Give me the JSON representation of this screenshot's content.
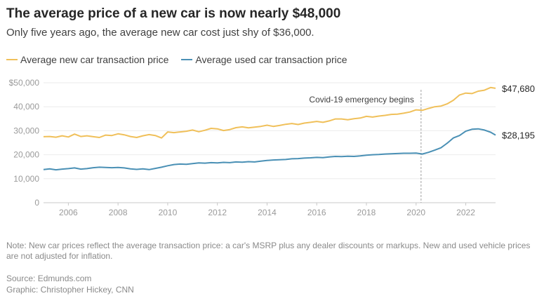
{
  "header": {
    "title": "The average price of a new car is now nearly $48,000",
    "subtitle": "Only five years ago, the average new car cost just shy of $36,000."
  },
  "footer": {
    "note": "Note: New car prices reflect the average transaction price: a car's MSRP plus any dealer discounts or markups. New and used vehicle prices are not adjusted for inflation.",
    "source": "Source: Edmunds.com",
    "credit": "Graphic: Christopher Hickey, CNN"
  },
  "chart_data": {
    "type": "line",
    "title": "The average price of a new car is now nearly $48,000",
    "subtitle": "Only five years ago, the average new car cost just shy of $36,000.",
    "xlabel": "",
    "ylabel": "",
    "xlim": [
      2005.0,
      2023.2
    ],
    "ylim": [
      0,
      50000
    ],
    "x_ticks": [
      2006,
      2008,
      2010,
      2012,
      2014,
      2016,
      2018,
      2020,
      2022
    ],
    "y_ticks": [
      0,
      10000,
      20000,
      30000,
      40000,
      50000
    ],
    "y_tick_labels": [
      "0",
      "10,000",
      "20,000",
      "30,000",
      "40,000",
      "$50,000"
    ],
    "grid": true,
    "legend": "top-left",
    "annotation": {
      "x": 2020.2,
      "label": "Covid-19 emergency begins"
    },
    "series": [
      {
        "name": "Average new car transaction price",
        "color": "#f0c05a",
        "end_label": "$47,680",
        "points": [
          [
            2005.0,
            27500
          ],
          [
            2005.25,
            27600
          ],
          [
            2005.5,
            27300
          ],
          [
            2005.75,
            27900
          ],
          [
            2006.0,
            27400
          ],
          [
            2006.25,
            28600
          ],
          [
            2006.5,
            27600
          ],
          [
            2006.75,
            27900
          ],
          [
            2007.0,
            27500
          ],
          [
            2007.25,
            27200
          ],
          [
            2007.5,
            28200
          ],
          [
            2007.75,
            28000
          ],
          [
            2008.0,
            28700
          ],
          [
            2008.25,
            28300
          ],
          [
            2008.5,
            27600
          ],
          [
            2008.75,
            27200
          ],
          [
            2009.0,
            27900
          ],
          [
            2009.25,
            28400
          ],
          [
            2009.5,
            28000
          ],
          [
            2009.75,
            27000
          ],
          [
            2010.0,
            29500
          ],
          [
            2010.25,
            29200
          ],
          [
            2010.5,
            29500
          ],
          [
            2010.75,
            29800
          ],
          [
            2011.0,
            30300
          ],
          [
            2011.25,
            29600
          ],
          [
            2011.5,
            30200
          ],
          [
            2011.75,
            31000
          ],
          [
            2012.0,
            30800
          ],
          [
            2012.25,
            30100
          ],
          [
            2012.5,
            30500
          ],
          [
            2012.75,
            31300
          ],
          [
            2013.0,
            31600
          ],
          [
            2013.25,
            31200
          ],
          [
            2013.5,
            31500
          ],
          [
            2013.75,
            31800
          ],
          [
            2014.0,
            32300
          ],
          [
            2014.25,
            31800
          ],
          [
            2014.5,
            32200
          ],
          [
            2014.75,
            32700
          ],
          [
            2015.0,
            33000
          ],
          [
            2015.25,
            32600
          ],
          [
            2015.5,
            33200
          ],
          [
            2015.75,
            33500
          ],
          [
            2016.0,
            33900
          ],
          [
            2016.25,
            33500
          ],
          [
            2016.5,
            34100
          ],
          [
            2016.75,
            34900
          ],
          [
            2017.0,
            34900
          ],
          [
            2017.25,
            34600
          ],
          [
            2017.5,
            35000
          ],
          [
            2017.75,
            35300
          ],
          [
            2018.0,
            36000
          ],
          [
            2018.25,
            35700
          ],
          [
            2018.5,
            36100
          ],
          [
            2018.75,
            36400
          ],
          [
            2019.0,
            36800
          ],
          [
            2019.25,
            36900
          ],
          [
            2019.5,
            37300
          ],
          [
            2019.75,
            37800
          ],
          [
            2020.0,
            38700
          ],
          [
            2020.25,
            38500
          ],
          [
            2020.5,
            39300
          ],
          [
            2020.75,
            40000
          ],
          [
            2021.0,
            40300
          ],
          [
            2021.25,
            41200
          ],
          [
            2021.5,
            42700
          ],
          [
            2021.75,
            44900
          ],
          [
            2022.0,
            45700
          ],
          [
            2022.25,
            45500
          ],
          [
            2022.5,
            46500
          ],
          [
            2022.75,
            46900
          ],
          [
            2023.0,
            48000
          ],
          [
            2023.2,
            47680
          ]
        ]
      },
      {
        "name": "Average used car transaction price",
        "color": "#4a90b5",
        "end_label": "$28,195",
        "points": [
          [
            2005.0,
            13800
          ],
          [
            2005.25,
            14100
          ],
          [
            2005.5,
            13700
          ],
          [
            2005.75,
            14000
          ],
          [
            2006.0,
            14200
          ],
          [
            2006.25,
            14500
          ],
          [
            2006.5,
            14000
          ],
          [
            2006.75,
            14200
          ],
          [
            2007.0,
            14600
          ],
          [
            2007.25,
            14800
          ],
          [
            2007.5,
            14700
          ],
          [
            2007.75,
            14600
          ],
          [
            2008.0,
            14700
          ],
          [
            2008.25,
            14500
          ],
          [
            2008.5,
            14100
          ],
          [
            2008.75,
            13900
          ],
          [
            2009.0,
            14100
          ],
          [
            2009.25,
            13800
          ],
          [
            2009.5,
            14300
          ],
          [
            2009.75,
            14800
          ],
          [
            2010.0,
            15400
          ],
          [
            2010.25,
            15900
          ],
          [
            2010.5,
            16100
          ],
          [
            2010.75,
            16000
          ],
          [
            2011.0,
            16300
          ],
          [
            2011.25,
            16600
          ],
          [
            2011.5,
            16500
          ],
          [
            2011.75,
            16700
          ],
          [
            2012.0,
            16600
          ],
          [
            2012.25,
            16800
          ],
          [
            2012.5,
            16700
          ],
          [
            2012.75,
            17000
          ],
          [
            2013.0,
            16900
          ],
          [
            2013.25,
            17100
          ],
          [
            2013.5,
            17000
          ],
          [
            2013.75,
            17300
          ],
          [
            2014.0,
            17600
          ],
          [
            2014.25,
            17800
          ],
          [
            2014.5,
            17900
          ],
          [
            2014.75,
            18000
          ],
          [
            2015.0,
            18300
          ],
          [
            2015.25,
            18400
          ],
          [
            2015.5,
            18600
          ],
          [
            2015.75,
            18700
          ],
          [
            2016.0,
            18900
          ],
          [
            2016.25,
            18800
          ],
          [
            2016.5,
            19100
          ],
          [
            2016.75,
            19300
          ],
          [
            2017.0,
            19200
          ],
          [
            2017.25,
            19400
          ],
          [
            2017.5,
            19300
          ],
          [
            2017.75,
            19500
          ],
          [
            2018.0,
            19800
          ],
          [
            2018.25,
            20000
          ],
          [
            2018.5,
            20100
          ],
          [
            2018.75,
            20300
          ],
          [
            2019.0,
            20400
          ],
          [
            2019.25,
            20500
          ],
          [
            2019.5,
            20600
          ],
          [
            2019.75,
            20600
          ],
          [
            2020.0,
            20700
          ],
          [
            2020.25,
            20300
          ],
          [
            2020.5,
            21000
          ],
          [
            2020.75,
            21900
          ],
          [
            2021.0,
            22900
          ],
          [
            2021.25,
            24800
          ],
          [
            2021.5,
            27000
          ],
          [
            2021.75,
            28000
          ],
          [
            2022.0,
            29800
          ],
          [
            2022.25,
            30600
          ],
          [
            2022.5,
            30800
          ],
          [
            2022.75,
            30300
          ],
          [
            2023.0,
            29400
          ],
          [
            2023.2,
            28195
          ]
        ]
      }
    ]
  }
}
